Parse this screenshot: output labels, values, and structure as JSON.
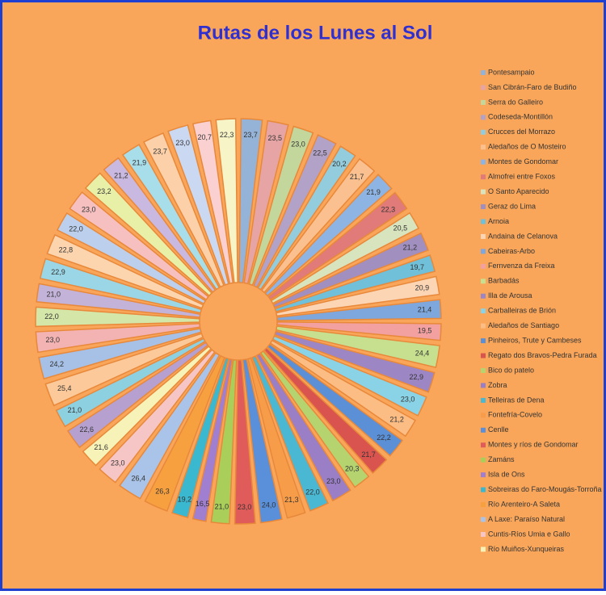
{
  "chart_data": {
    "type": "doughnut",
    "title": "Rutas de los Lunes al Sol",
    "categories": [
      "Pontesampaio",
      "San Cibrán-Faro de Budiño",
      "Serra do Galleiro",
      "Codeseda-Montillón",
      "Crucces del Morrazo",
      "Aledaños de O Mosteiro",
      "Montes de Gondomar",
      "Almofrei entre Foxos",
      "O Santo Aparecido",
      "Geraz do Lima",
      "Arnoia",
      "Andaina de Celanova",
      "Cabeiras-Arbo",
      "Fernvenza da Freixa",
      "Barbadás",
      "Illa de Arousa",
      "Carballeiras de Brión",
      "Aledaños de Santiago",
      "Pinheiros, Trute y Cambeses",
      "Regato dos Bravos-Pedra Furada",
      "Bico do patelo",
      "Zobra",
      "Telleiras de Dena",
      "Fontefría-Covelo",
      "Cenlle",
      "Montes y ríos de Gondomar",
      "Zamáns",
      "Isla de Ons",
      "Sobreiras do Faro-Mougás-Torroña",
      "Río Arenteiro-A Saleta",
      "A Laxe: Paraíso Natural",
      "Cuntis-Ríos Umia e Gallo",
      "Río Muiños-Xunqueiras",
      null,
      null,
      null,
      null,
      null,
      null,
      null,
      null,
      null,
      null,
      null,
      null,
      null,
      null,
      null,
      null,
      null,
      null
    ],
    "values": [
      23.7,
      23.5,
      23.0,
      22.5,
      20.2,
      21.7,
      21.9,
      22.3,
      20.5,
      21.2,
      19.7,
      20.9,
      21.4,
      19.5,
      24.4,
      22.9,
      23.0,
      21.2,
      22.2,
      21.7,
      20.3,
      23.0,
      22.0,
      21.3,
      24.0,
      23.0,
      21.0,
      16.5,
      19.2,
      26.3,
      26.4,
      23.0,
      21.6,
      22.6,
      21.0,
      25.4,
      24.2,
      23.0,
      22.0,
      21.0,
      22.9,
      22.8,
      22.0,
      23.0,
      23.2,
      21.2,
      21.9,
      23.7,
      23.0,
      20.7,
      22.3
    ],
    "value_labels": [
      "23,7",
      "23,5",
      "23,0",
      "22,5",
      "20,2",
      "21,7",
      "21,9",
      "22,3",
      "20,5",
      "21,2",
      "19,7",
      "20,9",
      "21,4",
      "19,5",
      "24,4",
      "22,9",
      "23,0",
      "21,2",
      "22,2",
      "21,7",
      "20,3",
      "23,0",
      "22,0",
      "21,3",
      "24,0",
      "23,0",
      "21,0",
      "16,5",
      "19,2",
      "26,3",
      "26,4",
      "23,0",
      "21,6",
      "22,6",
      "21,0",
      "25,4",
      "24,2",
      "23,0",
      "22,0",
      "21,0",
      "22,9",
      "22,8",
      "22,0",
      "23,0",
      "23,2",
      "21,2",
      "21,9",
      "23,7",
      "23,0",
      "20,7",
      "22,3"
    ],
    "colors": [
      "#95b3d7",
      "#e6a5a4",
      "#c3d69b",
      "#b3a2c7",
      "#93cddd",
      "#fac090",
      "#8eb4e3",
      "#e07b7a",
      "#d7e4bd",
      "#a18fc0",
      "#6fc0d8",
      "#fcd5b5",
      "#7ea7de",
      "#f2a0a0",
      "#c6e08f",
      "#9d86c4",
      "#8ad3e6",
      "#fbbd84",
      "#5b8fd6",
      "#d9544f",
      "#b5d46f",
      "#9a7fc7",
      "#4bb8d3",
      "#f79d4a",
      "#5a8fd9",
      "#e05c5a",
      "#a9cf5a",
      "#a07ed0",
      "#3ab8cf",
      "#f7a040",
      "#a9c4e8",
      "#f6c6c6",
      "#f7f3b8",
      "#b5a0d0",
      "#8dd0e0",
      "#fbc99a",
      "#a6c0e6",
      "#f4b3b3",
      "#d4e6a8",
      "#c3b3d9",
      "#9ad6e6",
      "#fcd4ae",
      "#bcd0ee",
      "#f6c0c0",
      "#e8f0a8",
      "#c9b8e0",
      "#a8ddea",
      "#fcd0a8",
      "#cad8f2",
      "#fad0d0",
      "#f7f5c8"
    ],
    "legend": "right"
  }
}
